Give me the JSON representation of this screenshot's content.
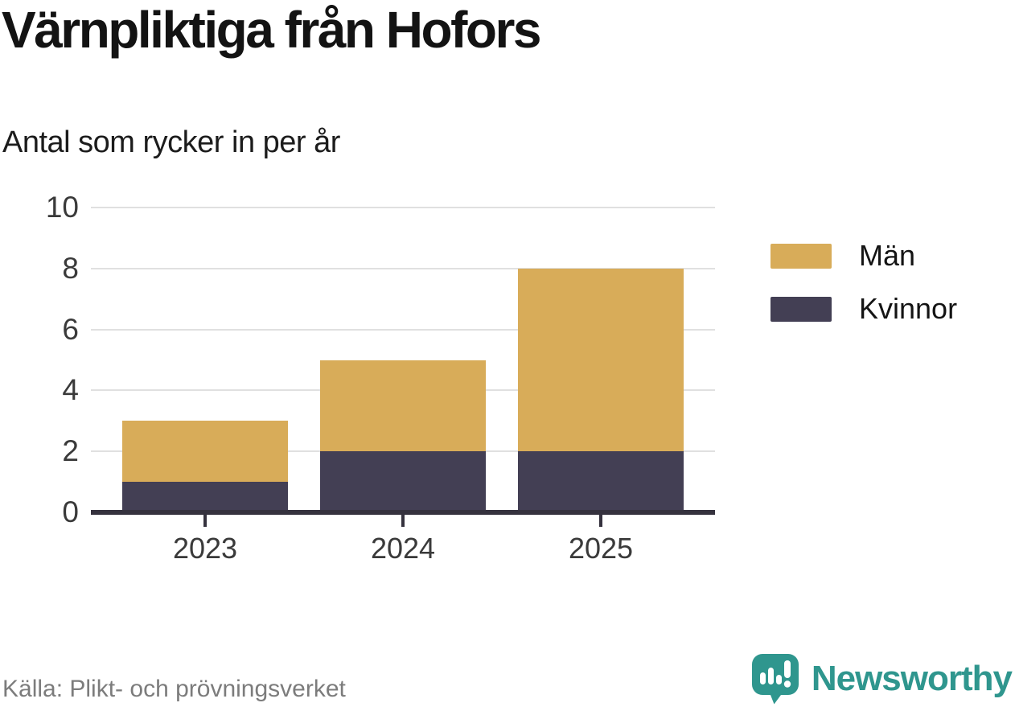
{
  "title": "Värnpliktiga från Hofors",
  "subtitle": "Antal som rycker in per år",
  "source": "Källa: Plikt- och prövningsverket",
  "brand": {
    "name": "Newsworthy",
    "color": "#2f968e"
  },
  "colors": {
    "men": "#d8ac59",
    "women": "#433f54",
    "axis": "#35323e",
    "grid": "#e0e0e0",
    "tick_label": "#3a3a3a",
    "title": "#131313",
    "source": "#7c7c7c"
  },
  "legend": [
    {
      "label": "Män",
      "color": "#d8ac59"
    },
    {
      "label": "Kvinnor",
      "color": "#433f54"
    }
  ],
  "chart_data": {
    "type": "bar",
    "stacked": true,
    "title": "Värnpliktiga från Hofors",
    "subtitle": "Antal som rycker in per år",
    "categories": [
      "2023",
      "2024",
      "2025"
    ],
    "series": [
      {
        "name": "Män",
        "values": [
          2,
          3,
          6
        ],
        "color": "#d8ac59"
      },
      {
        "name": "Kvinnor",
        "values": [
          1,
          2,
          2
        ],
        "color": "#433f54"
      }
    ],
    "stack_bottom_to_top": [
      "Kvinnor",
      "Män"
    ],
    "totals": [
      3,
      5,
      8
    ],
    "xlabel": "",
    "ylabel": "",
    "ylim": [
      0,
      10
    ],
    "yticks": [
      0,
      2,
      4,
      6,
      8,
      10
    ],
    "grid": "horizontal",
    "legend_position": "right"
  }
}
